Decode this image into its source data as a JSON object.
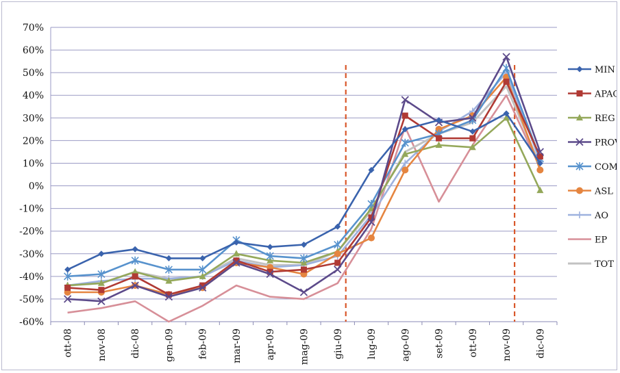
{
  "chart_data": {
    "type": "line",
    "categories": [
      "ott-08",
      "nov-08",
      "dic-08",
      "gen-09",
      "feb-09",
      "mar-09",
      "apr-09",
      "mag-09",
      "giu-09",
      "lug-09",
      "ago-09",
      "set-09",
      "ott-09",
      "nov-09",
      "dic-09"
    ],
    "y_ticks": [
      "70%",
      "60%",
      "50%",
      "40%",
      "30%",
      "20%",
      "10%",
      "0%",
      "-10%",
      "-20%",
      "-30%",
      "-40%",
      "-50%",
      "-60%"
    ],
    "ylim": [
      -60,
      70
    ],
    "grid": true,
    "legend_position": "right",
    "vertical_markers": [
      "giu-09",
      "nov-09"
    ],
    "marker_color": "#d9582b",
    "series": [
      {
        "name": "MIN",
        "color": "#3a63ad",
        "marker": "diamond",
        "values": [
          -37,
          -30,
          -28,
          -32,
          -32,
          -25,
          -27,
          -26,
          -18,
          7,
          25,
          29,
          24,
          32,
          10
        ]
      },
      {
        "name": "APAC",
        "color": "#b03a34",
        "marker": "square",
        "values": [
          -45,
          -46,
          -40,
          -48,
          -44,
          -33,
          -38,
          -37,
          -34,
          -14,
          31,
          21,
          21,
          46,
          13
        ]
      },
      {
        "name": "REG",
        "color": "#94a85a",
        "marker": "triangle",
        "values": [
          -44,
          -43,
          -38,
          -42,
          -40,
          -30,
          -33,
          -34,
          -29,
          -10,
          14,
          18,
          17,
          30,
          -2
        ]
      },
      {
        "name": "PROV",
        "color": "#5c4a8a",
        "marker": "x",
        "values": [
          -50,
          -51,
          -44,
          -49,
          -45,
          -34,
          -39,
          -47,
          -37,
          -16,
          38,
          28,
          30,
          57,
          15
        ]
      },
      {
        "name": "COM",
        "color": "#5792cd",
        "marker": "asterisk",
        "values": [
          -40,
          -39,
          -33,
          -37,
          -37,
          -24,
          -31,
          -32,
          -26,
          -8,
          19,
          23,
          29,
          52,
          12
        ]
      },
      {
        "name": "ASL",
        "color": "#e58540",
        "marker": "circle",
        "values": [
          -47,
          -47,
          -44,
          -48,
          -45,
          -34,
          -36,
          -39,
          -30,
          -23,
          7,
          25,
          31,
          48,
          7
        ]
      },
      {
        "name": "AO",
        "color": "#9db1de",
        "marker": "plus",
        "values": [
          -44,
          -42,
          -41,
          -41,
          -40,
          -33,
          -36,
          -35,
          -31,
          -13,
          10,
          24,
          33,
          50,
          11
        ]
      },
      {
        "name": "EP",
        "color": "#d78f98",
        "marker": "none",
        "values": [
          -56,
          -54,
          -51,
          -60,
          -53,
          -44,
          -49,
          -50,
          -43,
          -19,
          26,
          -7,
          18,
          40,
          8
        ]
      },
      {
        "name": "TOT",
        "color": "#c2c2c2",
        "marker": "none",
        "values": [
          -44,
          -43,
          -38,
          -41,
          -40,
          -32,
          -35,
          -35,
          -29,
          -11,
          15,
          23,
          28,
          44,
          9
        ]
      }
    ]
  }
}
